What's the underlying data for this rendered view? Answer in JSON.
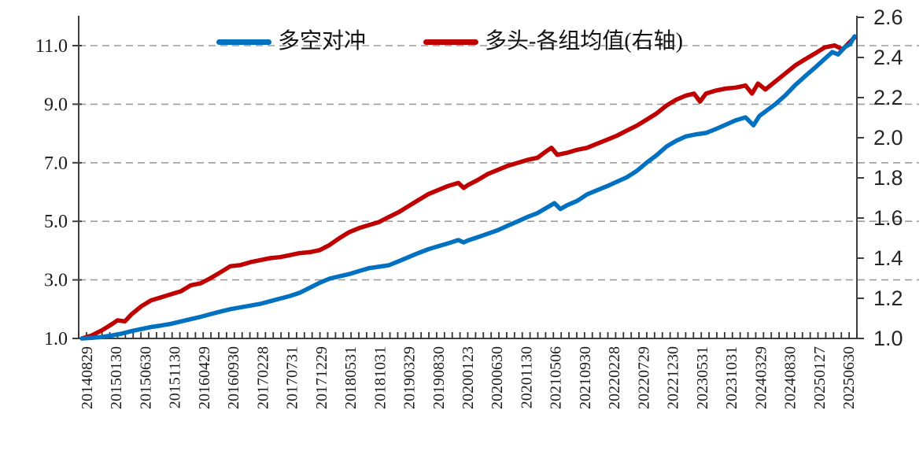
{
  "page": {
    "background": "#ffffff"
  },
  "legend": {
    "items": [
      {
        "label": "多空对冲",
        "color": "#0070C0"
      },
      {
        "label": "多头-各组均值(右轴)",
        "color": "#C00000"
      }
    ]
  },
  "chart_data": {
    "type": "line",
    "title": "",
    "grid": "horizontal-dashed",
    "legend_position": "top-center",
    "colors": {
      "grid": "#9c9c9c",
      "axis": "#3f3f3f",
      "tick": "#3f3f3f",
      "left_label": "#1a1a1a",
      "right_label": "#262626",
      "x_label": "#1a1a1a"
    },
    "categories": [
      "20140829",
      "20150130",
      "20150630",
      "20151130",
      "20160429",
      "20160930",
      "20170228",
      "20170731",
      "20171229",
      "20180531",
      "20181031",
      "20190329",
      "20190830",
      "20200123",
      "20200630",
      "20201130",
      "20210506",
      "20210930",
      "20220228",
      "20220729",
      "20221230",
      "20230531",
      "20231031",
      "20240329",
      "20240830",
      "20250127",
      "20250630"
    ],
    "x_tick_label_rotation": -90,
    "axes": {
      "left": {
        "ticks": [
          "11.0",
          "9.0",
          "7.0",
          "5.0",
          "3.0",
          "1.0"
        ],
        "tick_values": [
          11,
          9,
          7,
          5,
          3,
          1
        ],
        "range": [
          1.0,
          12.0
        ]
      },
      "right": {
        "ticks": [
          "2.6",
          "2.4",
          "2.2",
          "2.0",
          "1.8",
          "1.6",
          "1.4",
          "1.2",
          "1.0"
        ],
        "tick_values": [
          2.6,
          2.4,
          2.2,
          2.0,
          1.8,
          1.6,
          1.4,
          1.2,
          1.0
        ],
        "range": [
          1.0,
          2.6
        ],
        "note": "右轴"
      }
    },
    "series": [
      {
        "name": "多空对冲",
        "axis": "left",
        "color": "#0070C0",
        "values_at_categories": [
          1.0,
          1.1,
          1.32,
          1.5,
          1.74,
          2.0,
          2.18,
          2.45,
          2.9,
          3.2,
          3.45,
          3.78,
          4.15,
          4.35,
          4.7,
          5.15,
          5.48,
          5.92,
          6.35,
          7.0,
          7.75,
          8.02,
          8.45,
          8.75,
          9.65,
          10.55,
          11.32
        ],
        "points": [
          [
            0,
            1.0
          ],
          [
            0.33,
            1.02
          ],
          [
            0.67,
            1.05
          ],
          [
            1,
            1.1
          ],
          [
            1.33,
            1.16
          ],
          [
            1.67,
            1.25
          ],
          [
            2,
            1.32
          ],
          [
            2.33,
            1.39
          ],
          [
            2.67,
            1.44
          ],
          [
            3,
            1.5
          ],
          [
            3.33,
            1.58
          ],
          [
            3.67,
            1.66
          ],
          [
            4,
            1.74
          ],
          [
            4.33,
            1.83
          ],
          [
            4.67,
            1.92
          ],
          [
            5,
            2.0
          ],
          [
            5.33,
            2.06
          ],
          [
            5.67,
            2.12
          ],
          [
            6,
            2.18
          ],
          [
            6.33,
            2.27
          ],
          [
            6.67,
            2.36
          ],
          [
            7,
            2.45
          ],
          [
            7.33,
            2.56
          ],
          [
            7.67,
            2.73
          ],
          [
            8,
            2.9
          ],
          [
            8.33,
            3.04
          ],
          [
            8.67,
            3.12
          ],
          [
            9,
            3.2
          ],
          [
            9.33,
            3.3
          ],
          [
            9.67,
            3.4
          ],
          [
            10,
            3.45
          ],
          [
            10.33,
            3.5
          ],
          [
            10.67,
            3.64
          ],
          [
            11,
            3.78
          ],
          [
            11.33,
            3.92
          ],
          [
            11.67,
            4.05
          ],
          [
            12,
            4.15
          ],
          [
            12.33,
            4.25
          ],
          [
            12.67,
            4.36
          ],
          [
            12.85,
            4.28
          ],
          [
            13,
            4.35
          ],
          [
            13.33,
            4.46
          ],
          [
            13.67,
            4.58
          ],
          [
            14,
            4.7
          ],
          [
            14.33,
            4.85
          ],
          [
            14.67,
            5.0
          ],
          [
            15,
            5.15
          ],
          [
            15.33,
            5.28
          ],
          [
            15.7,
            5.5
          ],
          [
            15.9,
            5.62
          ],
          [
            16.1,
            5.42
          ],
          [
            16.33,
            5.55
          ],
          [
            16.67,
            5.7
          ],
          [
            17,
            5.92
          ],
          [
            17.33,
            6.06
          ],
          [
            17.67,
            6.2
          ],
          [
            18,
            6.35
          ],
          [
            18.33,
            6.5
          ],
          [
            18.67,
            6.72
          ],
          [
            19,
            7.0
          ],
          [
            19.33,
            7.25
          ],
          [
            19.67,
            7.55
          ],
          [
            20,
            7.75
          ],
          [
            20.33,
            7.9
          ],
          [
            20.67,
            7.97
          ],
          [
            21,
            8.02
          ],
          [
            21.33,
            8.15
          ],
          [
            21.67,
            8.3
          ],
          [
            22,
            8.45
          ],
          [
            22.33,
            8.55
          ],
          [
            22.6,
            8.28
          ],
          [
            22.8,
            8.6
          ],
          [
            23,
            8.75
          ],
          [
            23.33,
            9.0
          ],
          [
            23.67,
            9.3
          ],
          [
            24,
            9.65
          ],
          [
            24.33,
            9.95
          ],
          [
            24.67,
            10.25
          ],
          [
            25,
            10.55
          ],
          [
            25.25,
            10.78
          ],
          [
            25.45,
            10.7
          ],
          [
            25.67,
            10.95
          ],
          [
            25.85,
            11.05
          ],
          [
            26,
            11.32
          ]
        ]
      },
      {
        "name": "多头-各组均值(右轴)",
        "axis": "right",
        "color": "#C00000",
        "values_at_categories": [
          1.0,
          1.07,
          1.16,
          1.22,
          1.28,
          1.36,
          1.39,
          1.42,
          1.44,
          1.53,
          1.58,
          1.66,
          1.74,
          1.77,
          1.84,
          1.89,
          1.92,
          1.95,
          2.01,
          2.09,
          2.19,
          2.22,
          2.25,
          2.24,
          2.36,
          2.45,
          2.5
        ],
        "points": [
          [
            0,
            1.0
          ],
          [
            0.33,
            1.015
          ],
          [
            0.67,
            1.04
          ],
          [
            1,
            1.07
          ],
          [
            1.2,
            1.09
          ],
          [
            1.45,
            1.085
          ],
          [
            1.67,
            1.12
          ],
          [
            2,
            1.16
          ],
          [
            2.33,
            1.19
          ],
          [
            2.67,
            1.205
          ],
          [
            3,
            1.22
          ],
          [
            3.33,
            1.235
          ],
          [
            3.67,
            1.265
          ],
          [
            4,
            1.275
          ],
          [
            4.33,
            1.3
          ],
          [
            4.67,
            1.33
          ],
          [
            5,
            1.36
          ],
          [
            5.33,
            1.365
          ],
          [
            5.67,
            1.38
          ],
          [
            6,
            1.39
          ],
          [
            6.33,
            1.4
          ],
          [
            6.67,
            1.405
          ],
          [
            7,
            1.415
          ],
          [
            7.33,
            1.425
          ],
          [
            7.67,
            1.43
          ],
          [
            8,
            1.44
          ],
          [
            8.33,
            1.465
          ],
          [
            8.67,
            1.5
          ],
          [
            9,
            1.53
          ],
          [
            9.33,
            1.55
          ],
          [
            9.67,
            1.565
          ],
          [
            10,
            1.58
          ],
          [
            10.33,
            1.605
          ],
          [
            10.67,
            1.63
          ],
          [
            11,
            1.66
          ],
          [
            11.33,
            1.69
          ],
          [
            11.67,
            1.72
          ],
          [
            12,
            1.74
          ],
          [
            12.33,
            1.76
          ],
          [
            12.67,
            1.775
          ],
          [
            12.85,
            1.75
          ],
          [
            13,
            1.765
          ],
          [
            13.33,
            1.79
          ],
          [
            13.67,
            1.82
          ],
          [
            14,
            1.84
          ],
          [
            14.33,
            1.86
          ],
          [
            14.67,
            1.875
          ],
          [
            15,
            1.89
          ],
          [
            15.33,
            1.9
          ],
          [
            15.6,
            1.93
          ],
          [
            15.8,
            1.95
          ],
          [
            16,
            1.915
          ],
          [
            16.33,
            1.925
          ],
          [
            16.67,
            1.94
          ],
          [
            17,
            1.95
          ],
          [
            17.33,
            1.97
          ],
          [
            17.67,
            1.99
          ],
          [
            18,
            2.01
          ],
          [
            18.33,
            2.035
          ],
          [
            18.67,
            2.06
          ],
          [
            19,
            2.09
          ],
          [
            19.33,
            2.12
          ],
          [
            19.67,
            2.16
          ],
          [
            20,
            2.19
          ],
          [
            20.33,
            2.21
          ],
          [
            20.6,
            2.22
          ],
          [
            20.8,
            2.18
          ],
          [
            21,
            2.22
          ],
          [
            21.33,
            2.235
          ],
          [
            21.67,
            2.245
          ],
          [
            22,
            2.25
          ],
          [
            22.33,
            2.26
          ],
          [
            22.55,
            2.22
          ],
          [
            22.75,
            2.27
          ],
          [
            23,
            2.24
          ],
          [
            23.33,
            2.28
          ],
          [
            23.67,
            2.32
          ],
          [
            24,
            2.36
          ],
          [
            24.33,
            2.39
          ],
          [
            24.67,
            2.42
          ],
          [
            25,
            2.45
          ],
          [
            25.33,
            2.46
          ],
          [
            25.6,
            2.44
          ],
          [
            25.8,
            2.47
          ],
          [
            26,
            2.5
          ]
        ]
      }
    ]
  }
}
